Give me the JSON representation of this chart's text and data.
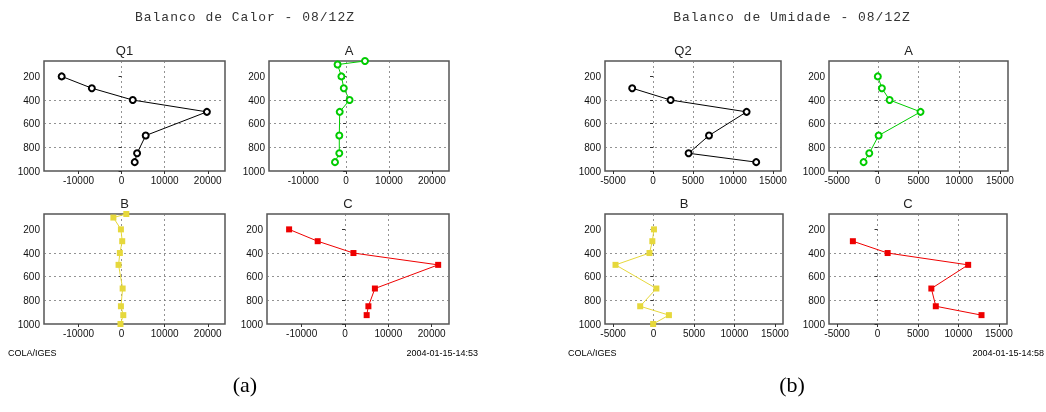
{
  "chart_data": [
    {
      "type": "line",
      "title": "Q1",
      "annotations": [
        "Balanco de Calor - 08/12Z",
        "COLA/IGES",
        "2004-01-15-14:53",
        "(a)"
      ],
      "xlim": [
        -18000,
        24000
      ],
      "xticks": [
        -10000,
        0,
        10000,
        20000
      ],
      "ylim": [
        1000,
        70
      ],
      "yticks": [
        200,
        400,
        600,
        800,
        1000
      ],
      "grid": true,
      "marker": "circle",
      "series": [
        {
          "color": "#000000",
          "x": [
            -13900,
            -6900,
            2600,
            19800,
            5600,
            3600,
            3050
          ],
          "values": [
            200,
            300,
            400,
            500,
            700,
            850,
            925
          ]
        }
      ]
    },
    {
      "type": "line",
      "title": "A",
      "xlim": [
        -18000,
        24000
      ],
      "xticks": [
        -10000,
        0,
        10000,
        20000
      ],
      "ylim": [
        1000,
        70
      ],
      "yticks": [
        200,
        400,
        600,
        800,
        1000
      ],
      "grid": true,
      "marker": "circle",
      "series": [
        {
          "color": "#00cc00",
          "x": [
            4400,
            -2000,
            -1100,
            -550,
            800,
            -1500,
            -1600,
            -1600,
            -2600
          ],
          "values": [
            70,
            100,
            200,
            300,
            400,
            500,
            700,
            850,
            925
          ]
        }
      ]
    },
    {
      "type": "line",
      "title": "B",
      "xlim": [
        -18000,
        24000
      ],
      "xticks": [
        -10000,
        0,
        10000,
        20000
      ],
      "ylim": [
        1000,
        70
      ],
      "yticks": [
        200,
        400,
        600,
        800,
        1000
      ],
      "grid": true,
      "marker": "square",
      "series": [
        {
          "color": "#e6d83c",
          "x": [
            1100,
            -1900,
            -150,
            150,
            -400,
            -700,
            250,
            -150,
            400,
            -250
          ],
          "values": [
            70,
            100,
            200,
            300,
            400,
            500,
            700,
            850,
            925,
            1000
          ]
        }
      ]
    },
    {
      "type": "line",
      "title": "C",
      "xlim": [
        -18000,
        24000
      ],
      "xticks": [
        -10000,
        0,
        10000,
        20000
      ],
      "ylim": [
        1000,
        70
      ],
      "yticks": [
        200,
        400,
        600,
        800,
        1000
      ],
      "grid": true,
      "marker": "square",
      "series": [
        {
          "color": "#ee0000",
          "x": [
            -12900,
            -6300,
            1950,
            21500,
            6900,
            5400,
            5000
          ],
          "values": [
            200,
            300,
            400,
            500,
            700,
            850,
            925
          ]
        }
      ]
    },
    {
      "type": "line",
      "title": "Q2",
      "annotations": [
        "Balanco de Umidade - 08/12Z",
        "COLA/IGES",
        "2004-01-15-14:58",
        "(b)"
      ],
      "xlim": [
        -6000,
        16000
      ],
      "xticks": [
        -5000,
        0,
        5000,
        10000,
        15000
      ],
      "ylim": [
        1000,
        70
      ],
      "yticks": [
        200,
        400,
        600,
        800,
        1000
      ],
      "grid": true,
      "marker": "circle",
      "series": [
        {
          "color": "#000000",
          "x": [
            -2600,
            2200,
            11700,
            7000,
            4450,
            12900
          ],
          "values": [
            300,
            400,
            500,
            700,
            850,
            925
          ]
        }
      ]
    },
    {
      "type": "line",
      "title": "A",
      "xlim": [
        -6000,
        16000
      ],
      "xticks": [
        -5000,
        0,
        5000,
        10000,
        15000
      ],
      "ylim": [
        1000,
        70
      ],
      "yticks": [
        200,
        400,
        600,
        800,
        1000
      ],
      "grid": true,
      "marker": "circle",
      "series": [
        {
          "color": "#00cc00",
          "x": [
            0,
            500,
            1450,
            5250,
            100,
            -1050,
            -1750
          ],
          "values": [
            200,
            300,
            400,
            500,
            700,
            850,
            925
          ]
        }
      ]
    },
    {
      "type": "line",
      "title": "B",
      "xlim": [
        -6000,
        16000
      ],
      "xticks": [
        -5000,
        0,
        5000,
        10000,
        15000
      ],
      "ylim": [
        1000,
        70
      ],
      "yticks": [
        200,
        400,
        600,
        800,
        1000
      ],
      "grid": true,
      "marker": "square",
      "series": [
        {
          "color": "#e6d83c",
          "x": [
            50,
            -150,
            -500,
            -4700,
            350,
            -1650,
            1900,
            -50
          ],
          "values": [
            200,
            300,
            400,
            500,
            700,
            850,
            925,
            1000
          ]
        }
      ]
    },
    {
      "type": "line",
      "title": "C",
      "xlim": [
        -6000,
        16000
      ],
      "xticks": [
        -5000,
        0,
        5000,
        10000,
        15000
      ],
      "ylim": [
        1000,
        70
      ],
      "yticks": [
        200,
        400,
        600,
        800,
        1000
      ],
      "grid": true,
      "marker": "square",
      "series": [
        {
          "color": "#ee0000",
          "x": [
            -3050,
            1250,
            11200,
            6650,
            7200,
            12850
          ],
          "values": [
            300,
            400,
            500,
            700,
            850,
            925
          ]
        }
      ]
    }
  ]
}
